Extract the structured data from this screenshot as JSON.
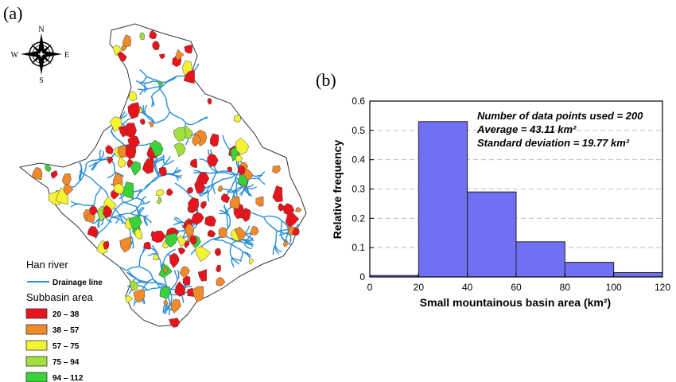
{
  "panel_a": {
    "label": "(a)",
    "compass": {
      "n": "N",
      "s": "S",
      "e": "E",
      "w": "W"
    },
    "legend": {
      "title": "Han river",
      "drainage_label": "Drainage line",
      "subbasin_title": "Subbasin area",
      "bins": [
        {
          "label": "20 – 38",
          "color": "#e8141b"
        },
        {
          "label": "38 – 57",
          "color": "#f28a2a"
        },
        {
          "label": "57 – 75",
          "color": "#f4f432"
        },
        {
          "label": "75 – 94",
          "color": "#a2e03c"
        },
        {
          "label": "94 – 112",
          "color": "#38d23a"
        }
      ]
    },
    "colors": {
      "river": "#2a8fd6",
      "basin_fill": "#ffffff",
      "outline": "#222222"
    }
  },
  "panel_b": {
    "label": "(b)"
  },
  "chart_data": {
    "type": "bar",
    "title": "",
    "xlabel": "Small mountainous basin area (km²)",
    "ylabel": "Relative frequency",
    "bin_edges": [
      0,
      20,
      40,
      60,
      80,
      100,
      120
    ],
    "values": [
      0.005,
      0.53,
      0.29,
      0.12,
      0.05,
      0.015
    ],
    "xlim": [
      0,
      120
    ],
    "ylim": [
      0,
      0.6
    ],
    "xticks": [
      "0",
      "20",
      "40",
      "60",
      "80",
      "100",
      "120"
    ],
    "yticks": [
      "0",
      "0.1",
      "0.2",
      "0.3",
      "0.4",
      "0.5",
      "0.6"
    ],
    "annotations": [
      "Number of data points used = 200",
      "Average = 43.11 km²",
      "Standard deviation = 19.77 km²"
    ],
    "grid": "horizontal dashed",
    "bar_color": "#7070f5",
    "bar_edge_color": "#222222"
  }
}
